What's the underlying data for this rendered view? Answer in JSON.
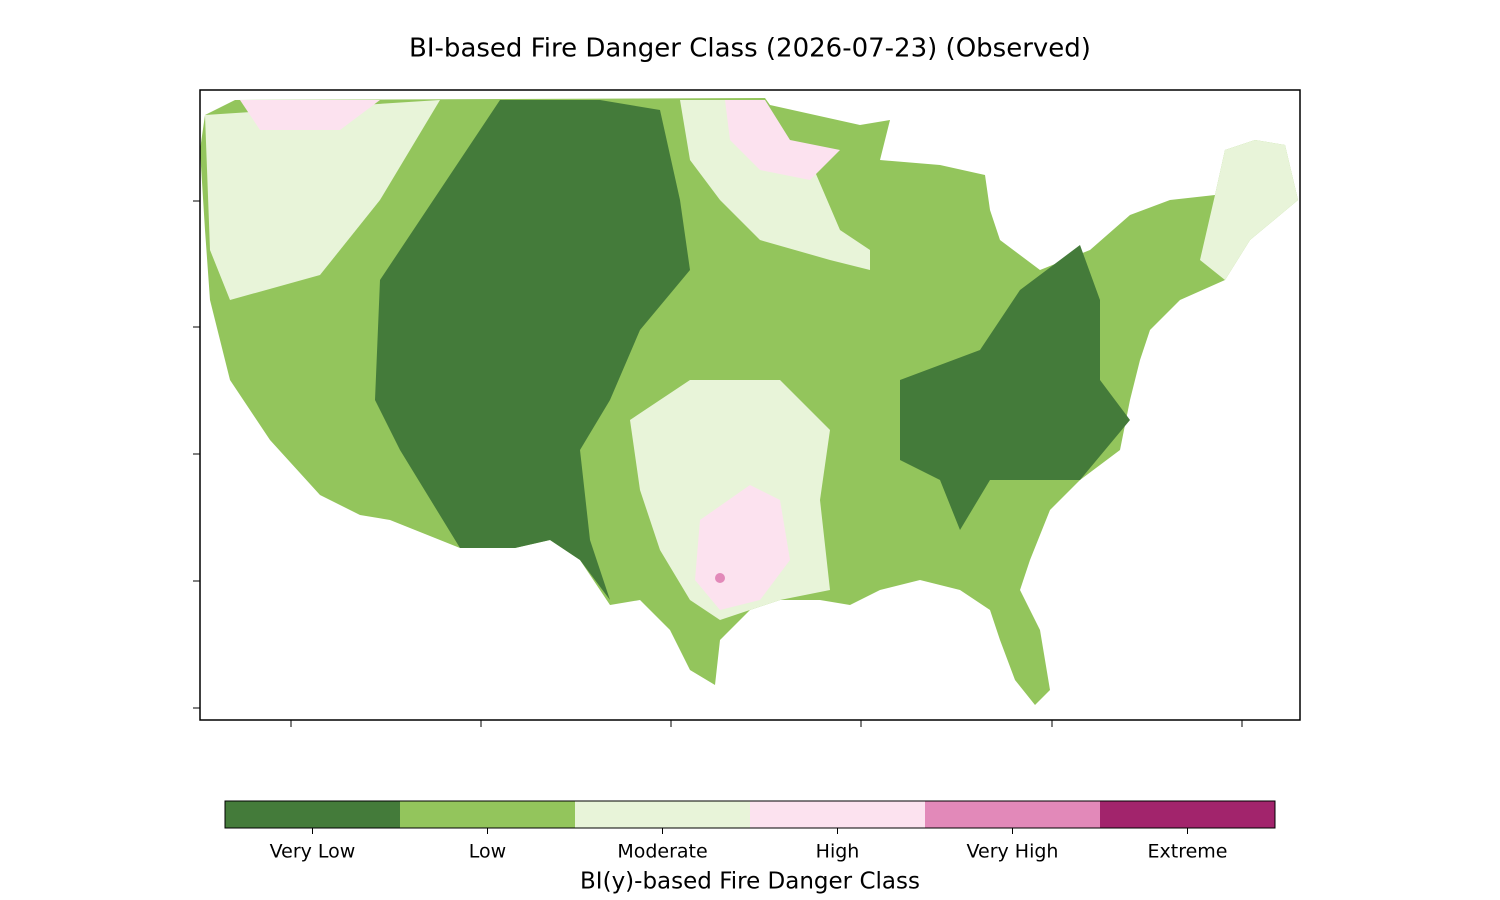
{
  "title": "BI-based Fire Danger Class (2026-07-23) (Observed)",
  "colorbar": {
    "label": "BI(y)-based Fire Danger Class",
    "classes": [
      {
        "name": "Very Low",
        "color": "#447b3a"
      },
      {
        "name": "Low",
        "color": "#93c55c"
      },
      {
        "name": "Moderate",
        "color": "#e8f4d9"
      },
      {
        "name": "High",
        "color": "#fce2ef"
      },
      {
        "name": "Very High",
        "color": "#e289b9"
      },
      {
        "name": "Extreme",
        "color": "#a2246c"
      }
    ]
  }
}
